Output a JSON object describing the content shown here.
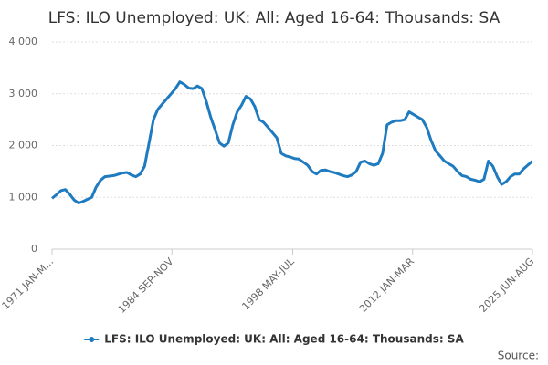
{
  "chart_data": {
    "type": "line",
    "title": "LFS: ILO Unemployed: UK: All: Aged 16-64: Thousands: SA",
    "source": "Source:",
    "x": [
      1971.0,
      1971.5,
      1972.0,
      1972.5,
      1973.0,
      1973.5,
      1974.0,
      1974.5,
      1975.0,
      1975.5,
      1976.0,
      1976.5,
      1977.0,
      1978.0,
      1979.0,
      1979.5,
      1980.0,
      1980.5,
      1981.0,
      1981.5,
      1982.0,
      1982.5,
      1983.0,
      1983.5,
      1984.0,
      1984.5,
      1985.0,
      1985.5,
      1986.0,
      1986.5,
      1987.0,
      1987.5,
      1988.0,
      1988.5,
      1989.0,
      1989.5,
      1990.0,
      1990.5,
      1991.0,
      1991.5,
      1992.0,
      1992.5,
      1993.0,
      1993.5,
      1994.0,
      1994.5,
      1995.0,
      1995.5,
      1996.0,
      1996.5,
      1997.0,
      1997.5,
      1998.0,
      1998.5,
      1999.0,
      1999.5,
      2000.0,
      2000.5,
      2001.0,
      2001.5,
      2002.0,
      2002.5,
      2003.0,
      2003.5,
      2004.0,
      2004.5,
      2005.0,
      2005.5,
      2006.0,
      2006.5,
      2007.0,
      2007.5,
      2008.0,
      2008.5,
      2009.0,
      2009.5,
      2010.0,
      2010.5,
      2011.0,
      2011.5,
      2012.0,
      2012.5,
      2013.0,
      2013.5,
      2014.0,
      2014.5,
      2015.0,
      2015.5,
      2016.0,
      2016.5,
      2017.0,
      2017.5,
      2018.0,
      2018.5,
      2019.0,
      2019.5,
      2020.0,
      2020.5,
      2021.0,
      2021.5,
      2022.0,
      2022.5,
      2023.0,
      2023.5,
      2024.0,
      2024.5,
      2025.5
    ],
    "series": [
      {
        "name": "LFS: ILO Unemployed: UK: All: Aged 16-64: Thousands: SA",
        "color": "#1f7bbf",
        "values": [
          980,
          1050,
          1130,
          1150,
          1060,
          950,
          890,
          920,
          960,
          1000,
          1200,
          1330,
          1400,
          1420,
          1470,
          1480,
          1430,
          1400,
          1450,
          1600,
          2050,
          2500,
          2700,
          2800,
          2900,
          3000,
          3100,
          3230,
          3180,
          3110,
          3100,
          3150,
          3100,
          2850,
          2550,
          2300,
          2050,
          1990,
          2050,
          2400,
          2650,
          2780,
          2950,
          2900,
          2750,
          2500,
          2450,
          2350,
          2250,
          2150,
          1850,
          1800,
          1780,
          1750,
          1740,
          1680,
          1620,
          1500,
          1450,
          1520,
          1530,
          1500,
          1480,
          1450,
          1420,
          1400,
          1430,
          1500,
          1680,
          1700,
          1650,
          1620,
          1650,
          1850,
          2400,
          2450,
          2480,
          2480,
          2500,
          2650,
          2600,
          2550,
          2500,
          2350,
          2100,
          1900,
          1800,
          1700,
          1650,
          1600,
          1500,
          1420,
          1400,
          1350,
          1330,
          1300,
          1350,
          1700,
          1600,
          1400,
          1250,
          1300,
          1400,
          1450,
          1450,
          1550,
          1700
        ]
      }
    ],
    "xlim": [
      1971.0,
      2025.5
    ],
    "xticks": [
      {
        "value": 1971.0,
        "label": "1971 JAN-M..."
      },
      {
        "value": 1984.6,
        "label": "1984 SEP-NOV"
      },
      {
        "value": 1998.3,
        "label": "1998 MAY-JUL"
      },
      {
        "value": 2011.9,
        "label": "2012 JAN-MAR"
      },
      {
        "value": 2025.5,
        "label": "2025 JUN-AUG"
      }
    ],
    "ylim": [
      0,
      4000
    ],
    "yticks": [
      0,
      {
        "value": 1000,
        "label": "1 000"
      },
      {
        "value": 2000,
        "label": "2 000"
      },
      {
        "value": 3000,
        "label": "3 000"
      },
      {
        "value": 4000,
        "label": "4 000"
      }
    ],
    "grid": true,
    "legend": "bottom"
  }
}
